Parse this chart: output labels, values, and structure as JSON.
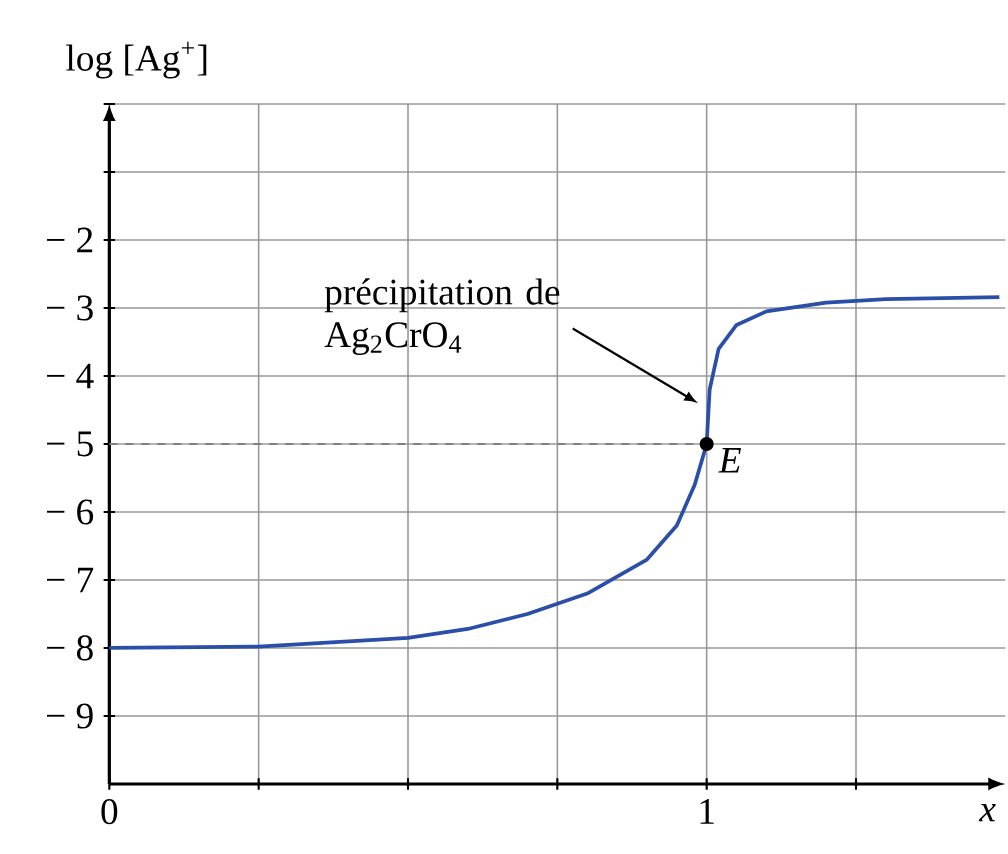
{
  "chart_data": {
    "type": "line",
    "xlabel": "x",
    "ylabel": "log [Ag$^{+}$]",
    "xlim": [
      0,
      1.5
    ],
    "ylim": [
      -10,
      0
    ],
    "xticks": [
      0,
      {
        "value": 0.25,
        "label": null
      },
      {
        "value": 0.5,
        "label": null
      },
      {
        "value": 0.75,
        "label": null
      },
      1,
      {
        "value": 1.25,
        "label": null
      }
    ],
    "yticks": [
      {
        "value": -9,
        "label": "− 9"
      },
      {
        "value": -8,
        "label": "− 8"
      },
      {
        "value": -7,
        "label": "− 7"
      },
      {
        "value": -6,
        "label": "− 6"
      },
      {
        "value": -5,
        "label": "− 5"
      },
      {
        "value": -4,
        "label": "− 4"
      },
      {
        "value": -3,
        "label": "− 3"
      },
      {
        "value": -2,
        "label": "− 2"
      },
      {
        "value": -1,
        "label": null
      },
      {
        "value": 0,
        "label": null
      }
    ],
    "grid": true,
    "marker": "none",
    "line_style": "solid",
    "x": [
      0,
      0.25,
      0.5,
      0.6,
      0.7,
      0.8,
      0.9,
      0.95,
      0.98,
      1.0,
      1.005,
      1.02,
      1.05,
      1.1,
      1.2,
      1.3,
      1.49
    ],
    "series": [
      {
        "color": "#2b4fa8",
        "values": [
          -8,
          -7.98,
          -7.85,
          -7.72,
          -7.5,
          -7.2,
          -6.7,
          -6.2,
          -5.6,
          -5,
          -4.2,
          -3.6,
          -3.25,
          -3.05,
          -2.92,
          -2.87,
          -2.84
        ]
      }
    ],
    "ref_lines": [
      {
        "axis": "y",
        "value": -5,
        "line_style": "dashed",
        "color": "#808080"
      }
    ],
    "annotations": [
      {
        "text": "précipitation de Ag$_{2}$CrO$_{4}$",
        "x": 0.99,
        "y": -4.4
      },
      {
        "text": "E",
        "x": 1,
        "y": -5
      }
    ]
  }
}
